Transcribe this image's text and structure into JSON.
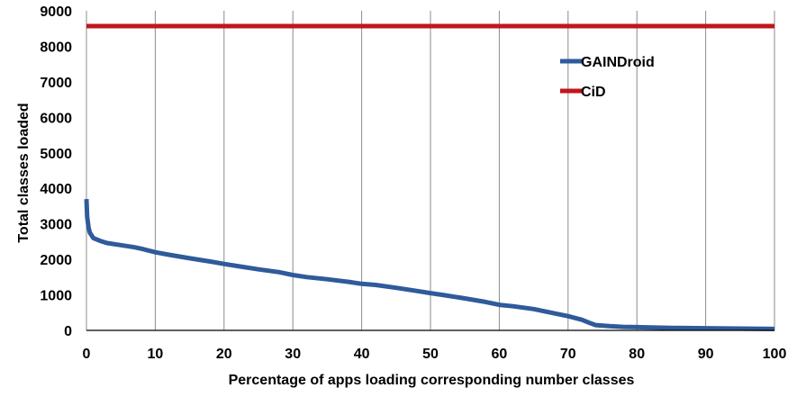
{
  "chart_data": {
    "type": "line",
    "title": "",
    "xlabel": "Percentage of apps loading corresponding number classes",
    "ylabel": "Total  classes loaded",
    "xlim": [
      0,
      100
    ],
    "ylim": [
      0,
      9000
    ],
    "x_ticks": [
      0,
      10,
      20,
      30,
      40,
      50,
      60,
      70,
      80,
      90,
      100
    ],
    "y_ticks": [
      0,
      1000,
      2000,
      3000,
      4000,
      5000,
      6000,
      7000,
      8000,
      9000
    ],
    "grid": "vertical",
    "legend_position": "top-right",
    "series": [
      {
        "name": "GAINDroid",
        "color": "#2f5a9b",
        "x": [
          0,
          0.1,
          0.3,
          0.5,
          1,
          2,
          3,
          5,
          7,
          8,
          10,
          12,
          15,
          18,
          20,
          22,
          25,
          28,
          30,
          32,
          35,
          38,
          40,
          42,
          45,
          48,
          50,
          52,
          55,
          58,
          60,
          62,
          65,
          68,
          70,
          71,
          72,
          73,
          74,
          76,
          78,
          80,
          85,
          90,
          95,
          100
        ],
        "y": [
          3700,
          3200,
          2900,
          2750,
          2600,
          2520,
          2460,
          2400,
          2340,
          2300,
          2200,
          2130,
          2030,
          1940,
          1870,
          1810,
          1720,
          1640,
          1560,
          1500,
          1440,
          1370,
          1310,
          1280,
          1200,
          1110,
          1050,
          990,
          900,
          800,
          720,
          680,
          600,
          480,
          400,
          350,
          300,
          220,
          150,
          120,
          100,
          90,
          70,
          60,
          50,
          40
        ]
      },
      {
        "name": "CiD",
        "color": "#c0161c",
        "x": [
          0,
          100
        ],
        "y": [
          8570,
          8570
        ]
      }
    ]
  }
}
